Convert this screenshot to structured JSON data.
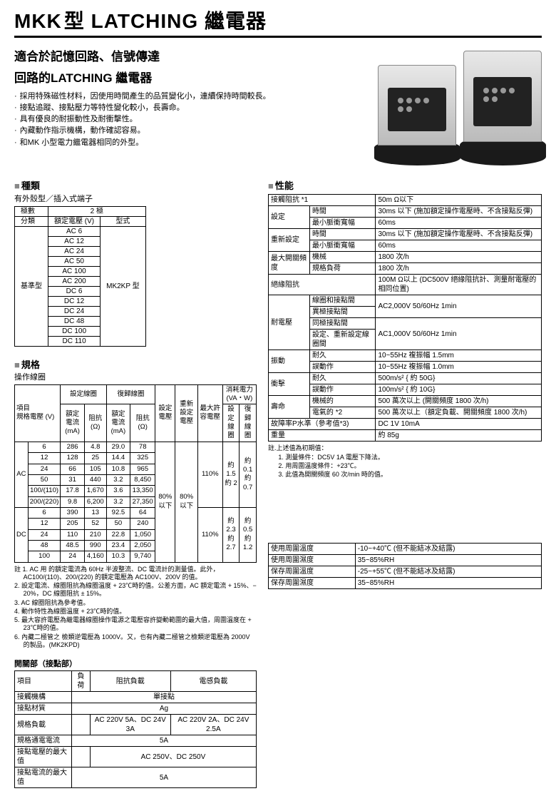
{
  "header": {
    "model": "MKK",
    "suffix": "型 LATCHING 繼電器"
  },
  "intro": {
    "line1": "適合於記憶回路、信號傳達",
    "line2": "回路的LATCHING 繼電器"
  },
  "bullets": [
    "採用特殊磁性材料，因使用時間產生的品質變化小，連續保持時間較長。",
    "接點追蹤、接點壓力等特性變化較小，長壽命。",
    "具有優良的耐振動性及耐衝擊性。",
    "內藏動作指示機構，動作確認容易。",
    "和MK 小型電力繼電器相同的外型。"
  ],
  "sections": {
    "types": "種類",
    "types_sub": "有外殼型／插入式端子",
    "spec": "規格",
    "spec_sub": "操作線圈",
    "contact": "開關部（接點部）",
    "perf": "性能"
  },
  "types_table": {
    "poles": "極數",
    "class": "分類",
    "rating": "額定電壓 (V)",
    "model": "型式",
    "poles_val": "2 極",
    "class_val": "基準型",
    "model_val": "MK2KP 型",
    "voltages": [
      "AC 6",
      "AC 12",
      "AC 24",
      "AC 50",
      "AC 100",
      "AC 200",
      "DC 6",
      "DC 12",
      "DC 24",
      "DC 48",
      "DC 100",
      "DC 110"
    ]
  },
  "spec_table": {
    "headers": {
      "item": "項目",
      "set_coil": "設定線圈",
      "reset_coil": "復歸線圈",
      "set_voltage": "設定電壓",
      "reset_set_voltage": "重新設定電壓",
      "max_voltage": "最大許容電壓",
      "power": "消耗電力 (VA・W)",
      "rated_v": "規格電壓 (V)",
      "current": "額定電流 (mA)",
      "resist": "阻抗 (Ω)",
      "set_col": "設定線圈",
      "reset_col": "復歸線圈"
    },
    "groups": {
      "ac": "AC",
      "dc": "DC"
    },
    "ac_rows": [
      {
        "v": "6",
        "sc": "286",
        "sr": "4.8",
        "rc": "29.0",
        "rr": "78"
      },
      {
        "v": "12",
        "sc": "128",
        "sr": "25",
        "rc": "14.4",
        "rr": "325"
      },
      {
        "v": "24",
        "sc": "66",
        "sr": "105",
        "rc": "10.8",
        "rr": "965"
      },
      {
        "v": "50",
        "sc": "31",
        "sr": "440",
        "rc": "3.2",
        "rr": "8,450"
      },
      {
        "v": "100/(110)",
        "sc": "17.8",
        "sr": "1,670",
        "rc": "3.6",
        "rr": "13,350"
      },
      {
        "v": "200/(220)",
        "sc": "9.8",
        "sr": "6,200",
        "rc": "3.2",
        "rr": "27,350"
      }
    ],
    "dc_rows": [
      {
        "v": "6",
        "sc": "390",
        "sr": "13",
        "rc": "92.5",
        "rr": "64"
      },
      {
        "v": "12",
        "sc": "205",
        "sr": "52",
        "rc": "50",
        "rr": "240"
      },
      {
        "v": "24",
        "sc": "110",
        "sr": "210",
        "rc": "22.8",
        "rr": "1,050"
      },
      {
        "v": "48",
        "sc": "48.5",
        "sr": "990",
        "rc": "23.4",
        "rr": "2,050"
      },
      {
        "v": "100",
        "sc": "24",
        "sr": "4,160",
        "rc": "10.3",
        "rr": "9,740"
      }
    ],
    "set_v": "80% 以下",
    "reset_v": "80% 以下",
    "max_v": "110%",
    "ac_p_set": "約 1.5 約 2",
    "ac_p_reset": "約 0.1 約 0.7",
    "dc_p_set": "約 2.3 約 2.7",
    "dc_p_reset": "約 0.5 約 1.2"
  },
  "spec_notes": [
    "註 1. AC 用 的額定電流為 60Hz 半波整流、DC 電流計的測量值。此外，AC100/(110)、200/(220) 的額定電壓為 AC100V、200V 的值。",
    "2. 設定電流、線圈阻抗為線圈溫度 + 23℃時的值。公差方面，AC 額定電流 + 15%、− 20%，DC 線圈阻抗 ± 15%。",
    "3. AC 線圈阻抗為參考值。",
    "4. 動作特性為線圈溫度 + 23℃時的值。",
    "5. 最大容許電壓為繼電器線圈操作電源之電壓容許變動範圍的最大值，周圍溫度在 + 23℃時的值。",
    "6. 內藏二極管之 檢類逆電壓為 1000V。又，也有內藏二極管之檢類逆電壓為 2000V 的製品。(MK2KPD)"
  ],
  "contact_table": {
    "item": "項目",
    "load": "負荷",
    "res_load": "阻抗負載",
    "ind_load": "電感負載",
    "mech": "接觸機構",
    "mech_val": "單接點",
    "mat": "接點材質",
    "mat_val": "Ag",
    "rated_load": "規格負載",
    "rated_load_res": "AC 220V 5A、DC 24V 3A",
    "rated_load_ind": "AC 220V 2A、DC 24V 2.5A",
    "current": "規格通電電流",
    "current_val": "5A",
    "vmax": "接點電壓的最大值",
    "vmax_val": "AC 250V、DC 250V",
    "imax": "接點電流的最大值",
    "imax_val": "5A"
  },
  "perf_table": {
    "contact_res": {
      "l": "接觸阻抗 *1",
      "v": "50m Ω以下"
    },
    "set_group": "設定",
    "reset_group": "重新設定",
    "time": {
      "l": "時間",
      "v": "30ms 以下 (施加額定操作電壓時、不含接點反彈)"
    },
    "pulse": {
      "l": "最小脈衝寬幅",
      "v": "60ms"
    },
    "freq": {
      "l": "最大開關頻度",
      "mech": "機械",
      "mech_v": "1800 次/h",
      "load": "規格負荷",
      "load_v": "1800 次/h"
    },
    "ins_res": {
      "l": "絕緣阻抗",
      "v": "100M Ω以上 (DC500V 絕緣阻抗計、測量耐電壓的相同位置)"
    },
    "dielectric": {
      "l": "耐電壓",
      "coil_contact": "線圈和接點間",
      "coil_contact_v": "AC2,000V 50/60Hz 1min",
      "diff_contact": "異極接點間",
      "same_contact": "同極接點間",
      "same_v": "AC1,000V 50/60Hz 1min",
      "set_reset": "設定、重新設定線圈間"
    },
    "vib": {
      "l": "振動",
      "dur": "耐久",
      "dur_v": "10~55Hz 複振幅 1.5mm",
      "mal": "誤動作",
      "mal_v": "10~55Hz 複振幅 1.0mm"
    },
    "shock": {
      "l": "衝擊",
      "dur": "耐久",
      "dur_v": "500m/s² { 約 50G}",
      "mal": "誤動作",
      "mal_v": "100m/s² { 約 10G}"
    },
    "life": {
      "l": "壽命",
      "mech": "機械的",
      "mech_v": "500 萬次以上 (開關頻度 1800 次/h)",
      "elec": "電氣的 *2",
      "elec_v": "500 萬次以上（額定負載、開關頻度 1800 次/h)"
    },
    "fault": {
      "l": "故障率P水準（參考值*3)",
      "v": "DC 1V 10mA"
    },
    "weight": {
      "l": "重量",
      "v": "約 85g"
    }
  },
  "perf_notes": {
    "intro": "註.上述值為初期值：",
    "n1": "1. 測量條件：DC5V 1A 電壓下降法。",
    "n2": "2. 用周圍溫度條件：+23℃。",
    "n3": "3. 此值為開關頻度 60 次/min 時的值。"
  },
  "env_table": {
    "use_temp": {
      "l": "使用周圍溫度",
      "v": "-10~+40℃ (但不能結冰及結露)"
    },
    "use_hum": {
      "l": "使用周圍濕度",
      "v": "35~85%RH"
    },
    "store_temp": {
      "l": "保存周圍溫度",
      "v": "-25~+55℃ (但不能結冰及結露)"
    },
    "store_hum": {
      "l": "保存周圍濕度",
      "v": "35~85%RH"
    }
  }
}
